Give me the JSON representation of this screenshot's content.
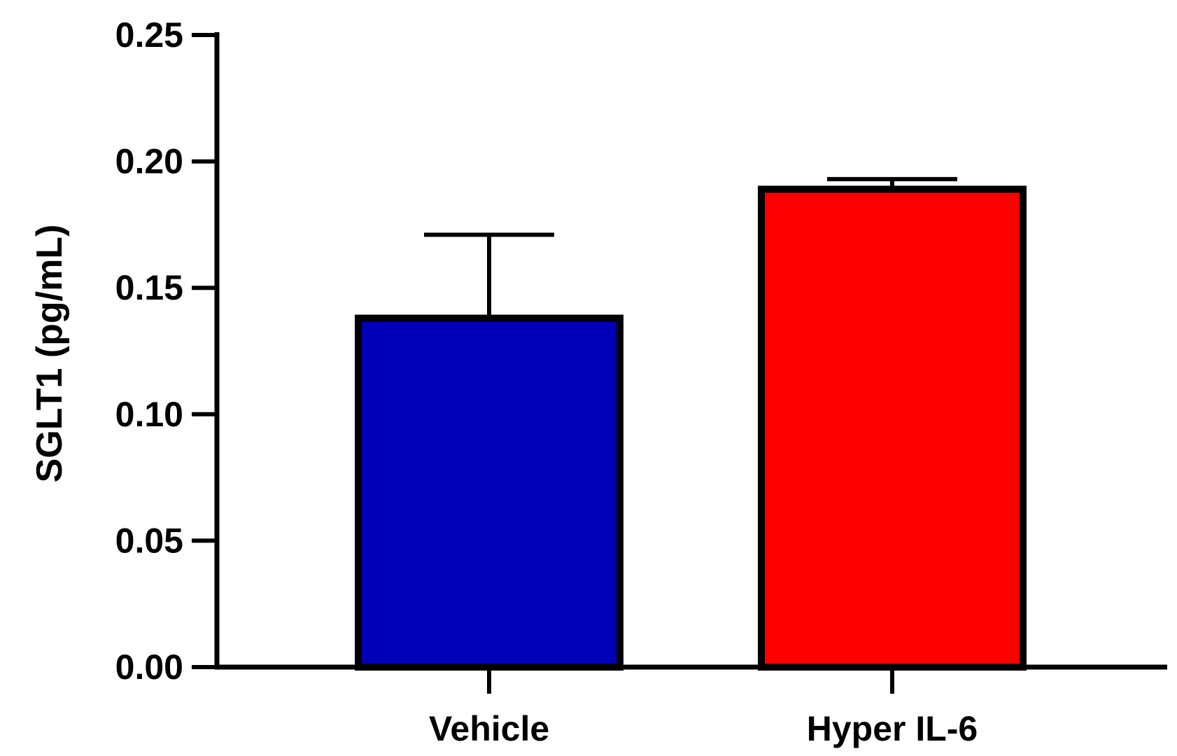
{
  "chart_data": {
    "type": "bar",
    "title": "",
    "xlabel": "",
    "ylabel": "SGLT1 (pg/mL)",
    "categories": [
      "Vehicle",
      "Hyper IL-6"
    ],
    "values": [
      0.138,
      0.189
    ],
    "error_upper": [
      0.171,
      0.193
    ],
    "bar_colors": [
      "#0000b8",
      "#ff0000"
    ],
    "edge_color": "#000000",
    "ylim": [
      0,
      0.25
    ],
    "yticks": [
      0.0,
      0.05,
      0.1,
      0.15,
      0.2,
      0.25
    ],
    "ytick_labels": [
      "0.00",
      "0.05",
      "0.10",
      "0.15",
      "0.20",
      "0.25"
    ],
    "grid": false,
    "legend": "none"
  }
}
